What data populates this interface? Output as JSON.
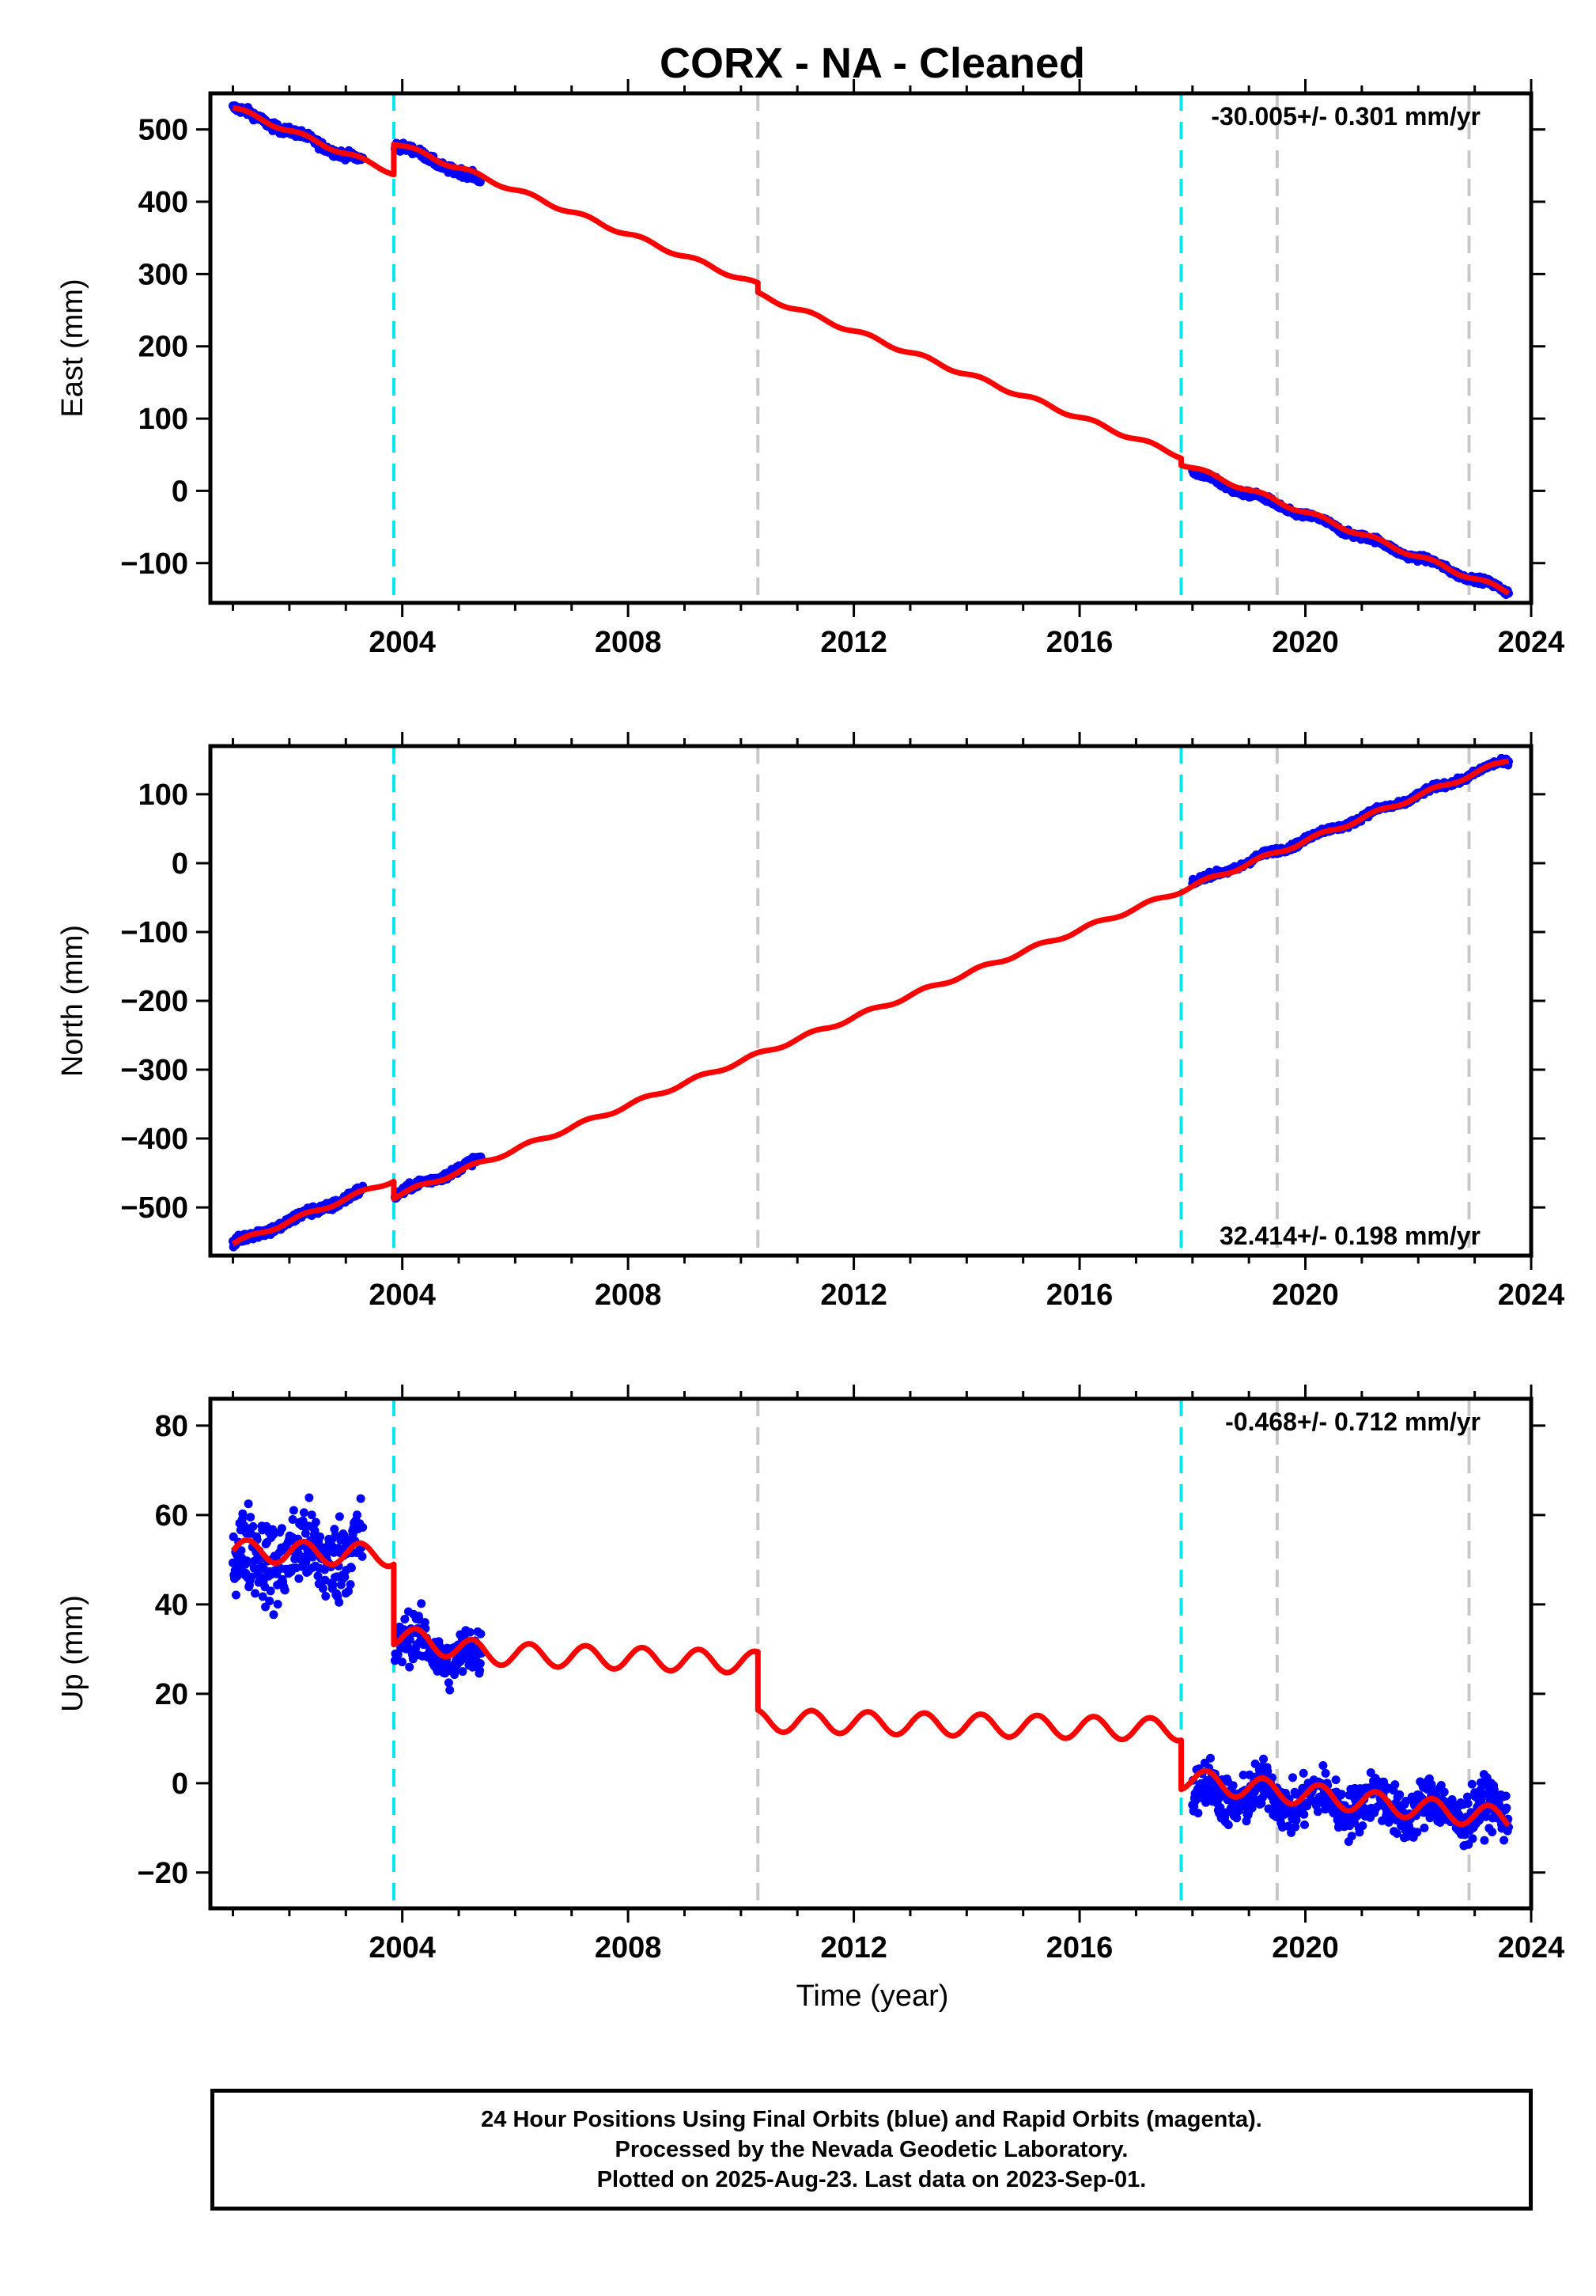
{
  "title": "CORX  - NA - Cleaned",
  "colors": {
    "data_points": "#0000ff",
    "model_line": "#ff0000",
    "equipment_change": "#00e5ee",
    "earthquake": "#c8c8c8",
    "axes": "#000000"
  },
  "xlabel": "Time (year)",
  "xlim": [
    2000.6,
    2024.0
  ],
  "xticks": [
    2004,
    2008,
    2012,
    2016,
    2020,
    2024
  ],
  "cyan_lines": [
    2003.85,
    2017.8
  ],
  "gray_lines": [
    2010.3,
    2019.5,
    2022.9
  ],
  "footer": {
    "line1": "24 Hour Positions Using Final Orbits (blue) and Rapid Orbits (magenta).",
    "line2": "Processed by the Nevada Geodetic Laboratory.",
    "line3": "Plotted on 2025-Aug-23. Last data on 2023-Sep-01."
  },
  "chart_data": [
    {
      "type": "scatter",
      "panel": "east",
      "ylabel": "East (mm)",
      "ylim": [
        -155,
        550
      ],
      "yticks": [
        -100,
        0,
        100,
        200,
        300,
        400,
        500
      ],
      "rate_label": "-30.005+/- 0.301 mm/yr",
      "rate_label_position": "top-right",
      "scatter_segments": [
        {
          "x_start": 2001.0,
          "x_end": 2003.3,
          "y_start": 530,
          "y_end": 455,
          "noise": 4
        },
        {
          "x_start": 2003.87,
          "x_end": 2005.4,
          "y_start": 480,
          "y_end": 428,
          "noise": 4
        },
        {
          "x_start": 2018.0,
          "x_end": 2023.6,
          "y_start": 25,
          "y_end": -140,
          "noise": 3
        }
      ],
      "model_line": [
        [
          2001.0,
          530
        ],
        [
          2003.85,
          440
        ],
        [
          2003.85,
          482
        ],
        [
          2010.3,
          285
        ],
        [
          2010.3,
          272
        ],
        [
          2017.8,
          48
        ],
        [
          2017.8,
          38
        ],
        [
          2023.6,
          -140
        ]
      ],
      "seasonal_amplitude": 3
    },
    {
      "type": "scatter",
      "panel": "north",
      "ylabel": "North (mm)",
      "ylim": [
        -570,
        170
      ],
      "yticks": [
        -500,
        -400,
        -300,
        -200,
        -100,
        0,
        100
      ],
      "rate_label": "32.414+/- 0.198 mm/yr",
      "rate_label_position": "bottom-right",
      "scatter_segments": [
        {
          "x_start": 2001.0,
          "x_end": 2003.3,
          "y_start": -553,
          "y_end": -477,
          "noise": 5
        },
        {
          "x_start": 2003.87,
          "x_end": 2005.4,
          "y_start": -482,
          "y_end": -430,
          "noise": 4
        },
        {
          "x_start": 2018.0,
          "x_end": 2023.6,
          "y_start": -30,
          "y_end": 150,
          "noise": 3
        }
      ],
      "model_line": [
        [
          2001.0,
          -553
        ],
        [
          2003.85,
          -460
        ],
        [
          2003.85,
          -485
        ],
        [
          2010.3,
          -278
        ],
        [
          2017.8,
          -40
        ],
        [
          2023.6,
          150
        ]
      ],
      "seasonal_amplitude": 3
    },
    {
      "type": "scatter",
      "panel": "up",
      "ylabel": "Up (mm)",
      "ylim": [
        -28,
        86
      ],
      "yticks": [
        -20,
        0,
        20,
        40,
        60,
        80
      ],
      "rate_label": "-0.468+/- 0.712 mm/yr",
      "rate_label_position": "top-right",
      "scatter_segments": [
        {
          "x_start": 2001.0,
          "x_end": 2003.3,
          "y_start": 50,
          "y_end": 52,
          "noise": 7
        },
        {
          "x_start": 2003.87,
          "x_end": 2005.4,
          "y_start": 32,
          "y_end": 27,
          "noise": 4
        },
        {
          "x_start": 2018.0,
          "x_end": 2023.6,
          "y_start": -2,
          "y_end": -7,
          "noise": 4
        }
      ],
      "model_line": [
        [
          2001.0,
          52
        ],
        [
          2003.85,
          51
        ],
        [
          2003.85,
          33
        ],
        [
          2005.5,
          29
        ],
        [
          2010.3,
          27
        ],
        [
          2010.3,
          14
        ],
        [
          2017.8,
          12
        ],
        [
          2017.8,
          1
        ],
        [
          2019.0,
          -1
        ],
        [
          2023.6,
          -8
        ]
      ],
      "seasonal_amplitude": 2.5
    }
  ]
}
